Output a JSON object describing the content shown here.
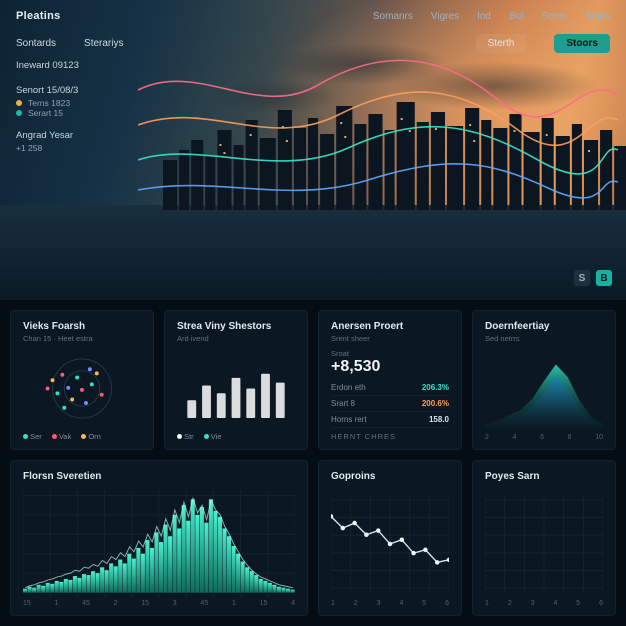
{
  "brand": "Pleatins",
  "topnav": [
    "Somanrs",
    "Vigres",
    "Ind",
    "Bul",
    "Sems",
    "Selps"
  ],
  "tabs": {
    "left1": "Sontards",
    "left2": "Sterariys",
    "rightPill": "Sterth",
    "rightAccent": "Stoors"
  },
  "hero": {
    "side": {
      "group1_title": "Ineward 09123",
      "group2_title": "Senort 15/08/3",
      "group2_items": [
        {
          "color": "#e7b24a",
          "label": "Terns 1823"
        },
        {
          "color": "#1fb99e",
          "label": "Serart 15"
        }
      ],
      "group3_title": "Angrad Yesar",
      "group3_sub": "+1 258"
    },
    "lines": {
      "colors": [
        "#ff6a8a",
        "#ff9d5c",
        "#3fe3c8",
        "#5ea9ff"
      ]
    },
    "badge": {
      "a": "S",
      "b": "B"
    }
  },
  "card1": {
    "title": "Vieks Foarsh",
    "sub": "Chan 15 · Heet estra",
    "scatter": {
      "xrange": [
        0,
        10
      ],
      "yrange": [
        0,
        10
      ],
      "points": [
        {
          "x": 1.5,
          "y": 5,
          "c": "#ff5a7a"
        },
        {
          "x": 2,
          "y": 6.2,
          "c": "#ffb35a"
        },
        {
          "x": 2.5,
          "y": 4.3,
          "c": "#2fe3c6"
        },
        {
          "x": 3,
          "y": 7,
          "c": "#ff5a7a"
        },
        {
          "x": 3.6,
          "y": 5.1,
          "c": "#7a8cff"
        },
        {
          "x": 4,
          "y": 3.4,
          "c": "#ffb35a"
        },
        {
          "x": 4.5,
          "y": 6.6,
          "c": "#2fe3c6"
        },
        {
          "x": 5,
          "y": 4.8,
          "c": "#ff5a7a"
        },
        {
          "x": 5.4,
          "y": 2.9,
          "c": "#7a8cff"
        },
        {
          "x": 6,
          "y": 5.6,
          "c": "#2fe3c6"
        },
        {
          "x": 6.5,
          "y": 7.2,
          "c": "#ffb35a"
        },
        {
          "x": 7,
          "y": 4.1,
          "c": "#ff5a7a"
        },
        {
          "x": 3.2,
          "y": 2.2,
          "c": "#2fe3c6"
        },
        {
          "x": 5.8,
          "y": 7.8,
          "c": "#7a8cff"
        }
      ],
      "ring_color": "#1e3a46"
    },
    "legend": [
      {
        "c": "#2fe3c6",
        "t": "Ser"
      },
      {
        "c": "#ff5a7a",
        "t": "Vak"
      },
      {
        "c": "#ffb35a",
        "t": "Orn"
      }
    ]
  },
  "card2": {
    "title": "Strea Viny Shestors",
    "sub": "Ard ivend",
    "bars": {
      "values": [
        30,
        55,
        42,
        68,
        50,
        75,
        60
      ],
      "max": 100,
      "color": "#ffffff",
      "tall_color": "#e6edf3"
    },
    "legend": [
      {
        "c": "#ffffff",
        "t": "Str"
      },
      {
        "c": "#2fe3c6",
        "t": "Vie"
      }
    ]
  },
  "card3": {
    "title": "Anersen Proert",
    "sub": "Srent sheer",
    "big_label": "Sroat",
    "big_value": "+8,530",
    "rows": [
      {
        "k": "Erdon eth",
        "v": "206.3%",
        "c": "#2fe3c6"
      },
      {
        "k": "Srart 8",
        "v": "200.6%",
        "c": "#ff9d5c"
      },
      {
        "k": "Horns rert",
        "v": "158.0",
        "c": "#e6edf3"
      }
    ],
    "foot": "HERNT CHRES"
  },
  "card4": {
    "title": "Doernfeertiay",
    "sub": "Sed netrrs",
    "area": {
      "type": "area",
      "xrange": [
        0,
        10
      ],
      "yrange": [
        0,
        10
      ],
      "series1": [
        0.5,
        1,
        1.8,
        2.6,
        4.2,
        6.8,
        9.2,
        7.4,
        4.0,
        1.6,
        0.6
      ],
      "series2": [
        0.3,
        0.6,
        1.1,
        1.8,
        3.0,
        5.0,
        7.5,
        5.6,
        2.8,
        1.0,
        0.3
      ],
      "c1": "#2fe3c6",
      "c2": "#1a7bd4"
    },
    "xticks": [
      "2",
      "4",
      "6",
      "8",
      "10"
    ]
  },
  "card5": {
    "title": "Florsn Sveretien",
    "hist": {
      "xrange": [
        0,
        60
      ],
      "yrange": [
        0,
        100
      ],
      "values": [
        4,
        6,
        5,
        8,
        7,
        10,
        9,
        12,
        11,
        14,
        13,
        17,
        15,
        19,
        18,
        22,
        20,
        26,
        23,
        30,
        27,
        34,
        30,
        40,
        35,
        46,
        40,
        54,
        46,
        62,
        52,
        70,
        58,
        80,
        66,
        90,
        74,
        96,
        80,
        88,
        72,
        96,
        84,
        78,
        66,
        58,
        48,
        40,
        32,
        26,
        22,
        18,
        14,
        12,
        10,
        8,
        6,
        5,
        4,
        3
      ],
      "bar_color_top": "#4af0cf",
      "bar_color_bot": "#0f6b5a",
      "overlay_line": [
        5,
        7,
        8,
        10,
        11,
        13,
        14,
        16,
        17,
        19,
        20,
        23,
        22,
        26,
        25,
        29,
        27,
        33,
        30,
        37,
        34,
        41,
        37,
        47,
        42,
        53,
        47,
        60,
        52,
        68,
        58,
        76,
        64,
        85,
        72,
        93,
        78,
        97,
        82,
        90,
        75,
        95,
        85,
        80,
        68,
        60,
        50,
        42,
        34,
        28,
        23,
        19,
        16,
        14,
        12,
        10,
        8,
        7,
        6,
        5
      ],
      "overlay_color": "#bff7ea"
    },
    "xticks": [
      "15",
      "1",
      "45",
      "2",
      "15",
      "3",
      "45",
      "1",
      "15",
      "4"
    ]
  },
  "card6": {
    "title": "Goproins",
    "line": {
      "xrange": [
        0,
        10
      ],
      "yrange": [
        0,
        10
      ],
      "values": [
        8.6,
        7.2,
        7.8,
        6.4,
        6.9,
        5.3,
        5.8,
        4.2,
        4.6,
        3.1,
        3.4
      ],
      "color": "#d7e3ec",
      "point_color": "#eef4f8"
    },
    "xticks": [
      "1",
      "2",
      "3",
      "4",
      "5",
      "6"
    ]
  },
  "card7": {
    "title": "Poyes Sarn",
    "grid_only": true,
    "xticks": [
      "1",
      "2",
      "3",
      "4",
      "5",
      "6"
    ]
  },
  "palette": {
    "bg": "#050d14",
    "card": "#0b1722",
    "border": "#112231",
    "text": "#b8c5d0",
    "text_dim": "#5e7384",
    "accent": "#1f9d8f"
  }
}
